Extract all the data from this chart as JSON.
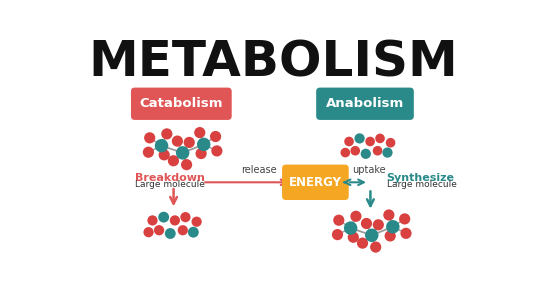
{
  "title": "METABOLISM",
  "title_fontsize": 36,
  "title_color": "#111111",
  "bg_color": "#ffffff",
  "catabolism_label": "Catabolism",
  "anabolism_label": "Anabolism",
  "catabolism_color": "#e05555",
  "anabolism_color": "#2a8a8a",
  "energy_label": "ENERGY",
  "energy_color": "#f5a623",
  "breakdown_label": "Breakdown",
  "breakdown_sub": "Large molecule",
  "release_label": "release",
  "uptake_label": "uptake",
  "synthesize_label": "Synthesize",
  "synthesize_sub": "Large molecule",
  "red_atom": "#d94040",
  "teal_atom": "#2a8a8a",
  "bond_color": "#999999"
}
